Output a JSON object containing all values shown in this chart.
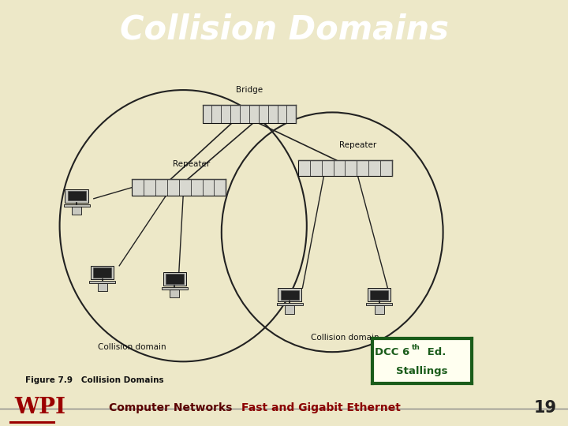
{
  "title": "Collision Domains",
  "title_bg_color": "#9B0000",
  "title_text_color": "#FFFFFF",
  "slide_bg_color": "#EDE8C8",
  "diagram_bg_color": "#E8E6E0",
  "footer_bg_color": "#B8B4B4",
  "footer_text_dark": "#5A0000",
  "footer_text_red": "#8B0000",
  "footer_label1": "Computer Networks",
  "footer_label2": "Fast and Gigabit Ethernet",
  "footer_number": "19",
  "dcc_box_color": "#1A5C1A",
  "dcc_bg": "#FFFFF0",
  "wpi_color": "#9B0000",
  "diagram_line_color": "#222222",
  "device_fill": "#D8D8D0",
  "device_edge": "#111111"
}
